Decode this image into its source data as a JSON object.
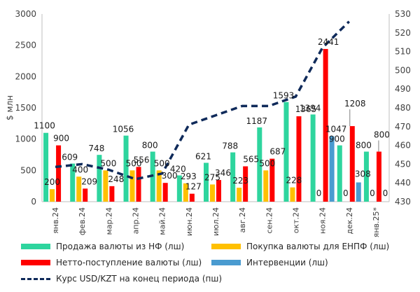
{
  "chart_data": {
    "type": "bar",
    "ylabel": "$ млн",
    "ylim": [
      0,
      3000
    ],
    "y2lim": [
      430,
      530
    ],
    "yticks": [
      "0",
      "500",
      "1000",
      "1500",
      "2000",
      "2500",
      "3000"
    ],
    "y2ticks": [
      "430",
      "440",
      "450",
      "460",
      "470",
      "480",
      "490",
      "500",
      "510",
      "520",
      "530"
    ],
    "categories": [
      "янв.24",
      "фев.24",
      "мар.24",
      "апр.24",
      "май.24",
      "июн.24",
      "июл.24",
      "авг.24",
      "сен.24",
      "окт.24",
      "ноя.24",
      "дек.24",
      "янв.25*"
    ],
    "series": [
      {
        "name": "Продажа валюты из НФ (лш)",
        "color": "#2ed59e",
        "values": [
          1100,
          609,
          748,
          1056,
          800,
          420,
          621,
          788,
          1187,
          1593,
          1394,
          900,
          800
        ],
        "labels": [
          "1100",
          "609",
          "748",
          "1056",
          "800",
          "420",
          "621",
          "788",
          "1187",
          "1593",
          "1394",
          "900",
          "800"
        ]
      },
      {
        "name": "Покупка валюты для ЕНПФ (лш)",
        "color": "#ffc000",
        "values": [
          200,
          400,
          500,
          500,
          500,
          293,
          275,
          223,
          500,
          228,
          0,
          0,
          0
        ],
        "labels": [
          "200",
          "400",
          "500",
          "500",
          "500",
          "293",
          "275",
          "223",
          "500",
          "228",
          "",
          "",
          ""
        ]
      },
      {
        "name": "Нетто-поступление валюты (лш)",
        "color": "#ff0000",
        "values": [
          900,
          209,
          248,
          556,
          300,
          127,
          346,
          565,
          687,
          1365,
          2441,
          1208,
          800
        ],
        "labels": [
          "900",
          "209",
          "248",
          "556",
          "300",
          "127",
          "346",
          "565",
          "687",
          "1365",
          "2441",
          "1208",
          "800"
        ]
      },
      {
        "name": "Интервенции (лш)",
        "color": "#4a9bd0",
        "values": [
          0,
          0,
          0,
          0,
          0,
          0,
          0,
          0,
          0,
          0,
          1047,
          308,
          0
        ],
        "labels": [
          "",
          "",
          "",
          "",
          "",
          "",
          "",
          "",
          "",
          "",
          "1047",
          "308",
          "0"
        ]
      },
      {
        "name": "Курс USD/KZT на конец периода (пш)",
        "color": "#0f2a5a",
        "type": "line",
        "axis": "right",
        "values": [
          448.5,
          450,
          447,
          442,
          445,
          471,
          476,
          481,
          481,
          486,
          512,
          526,
          null
        ]
      }
    ],
    "zero_labels": [
      "0",
      "0",
      "0"
    ]
  }
}
